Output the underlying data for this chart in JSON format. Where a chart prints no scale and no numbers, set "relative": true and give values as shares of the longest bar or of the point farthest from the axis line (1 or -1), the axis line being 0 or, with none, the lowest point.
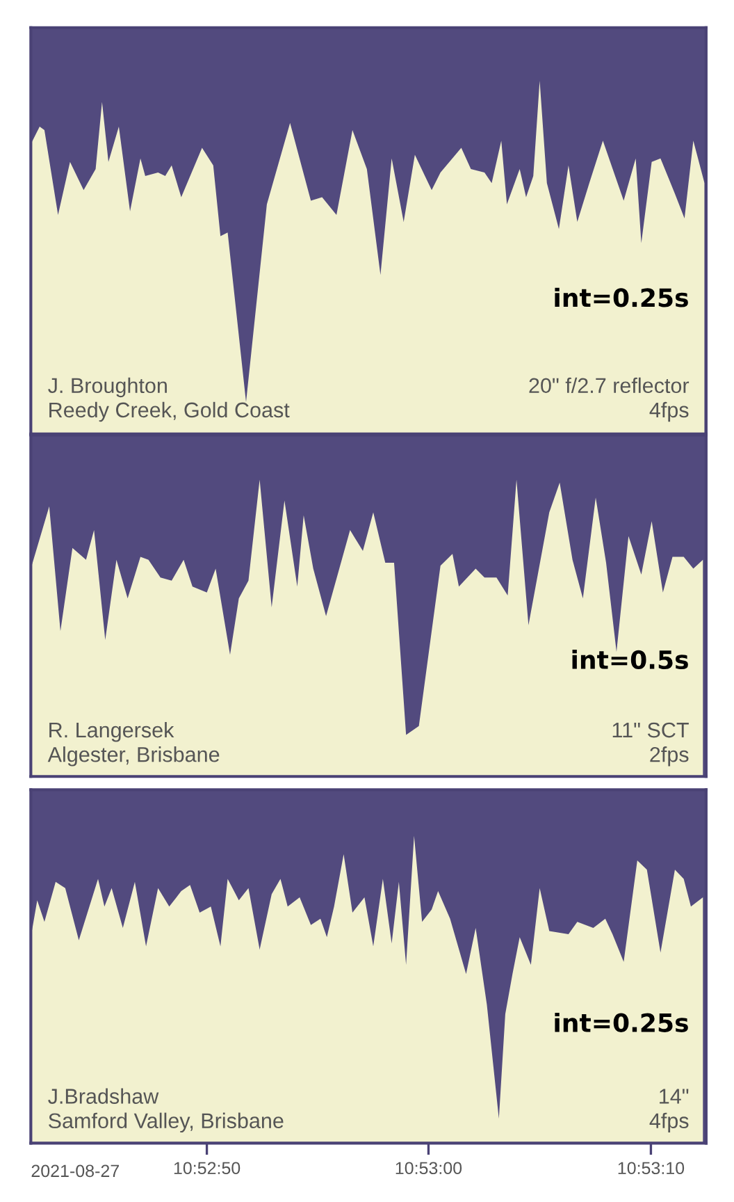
{
  "chart_data": [
    {
      "type": "area",
      "relative": true,
      "color": "#f2f1cf",
      "tick_labels": false,
      "xlim": [
        10.87836,
        10.8868
      ],
      "x": [
        10.87836,
        10.87847,
        10.87853,
        10.8787,
        10.87885,
        10.87902,
        10.87917,
        10.87925,
        10.87933,
        10.87946,
        10.8796,
        10.87973,
        10.87979,
        10.87995,
        10.88004,
        10.88012,
        10.88024,
        10.8805,
        10.88064,
        10.88073,
        10.88082,
        10.88105,
        10.88131,
        10.8816,
        10.88186,
        10.882,
        10.88218,
        10.88238,
        10.88256,
        10.88273,
        10.88287,
        10.88302,
        10.88316,
        10.88337,
        10.88348,
        10.88374,
        10.88386,
        10.88403,
        10.88412,
        10.88424,
        10.88431,
        10.88447,
        10.88455,
        10.88464,
        10.88472,
        10.88481,
        10.88496,
        10.88508,
        10.88519,
        10.88534,
        10.88551,
        10.88577,
        10.88592,
        10.88599,
        10.88612,
        10.88623,
        10.88641,
        10.88653,
        10.88664,
        10.88678
      ],
      "values": [
        0.82,
        0.87,
        0.86,
        0.62,
        0.77,
        0.69,
        0.75,
        0.94,
        0.77,
        0.87,
        0.63,
        0.78,
        0.73,
        0.74,
        0.73,
        0.76,
        0.67,
        0.81,
        0.76,
        0.56,
        0.57,
        0.09,
        0.65,
        0.88,
        0.66,
        0.67,
        0.62,
        0.86,
        0.75,
        0.45,
        0.78,
        0.6,
        0.79,
        0.69,
        0.74,
        0.81,
        0.75,
        0.74,
        0.71,
        0.83,
        0.65,
        0.75,
        0.67,
        0.73,
        1.0,
        0.71,
        0.58,
        0.76,
        0.6,
        0.71,
        0.83,
        0.66,
        0.78,
        0.54,
        0.77,
        0.78,
        0.68,
        0.61,
        0.83,
        0.71
      ],
      "annotations": [
        "J. Broughton\nReedy Creek, Gold Coast",
        "20\" f/2.7 reflector\n4fps",
        "int=0.25s"
      ]
    },
    {
      "type": "area",
      "relative": true,
      "color": "#f2f1cf",
      "tick_labels": false,
      "xlim": [
        10.87836,
        10.8868
      ],
      "x": [
        10.87836,
        10.87859,
        10.87873,
        10.87888,
        10.87905,
        10.87915,
        10.87929,
        10.87943,
        10.87957,
        10.87973,
        10.87983,
        10.87998,
        10.88012,
        10.88027,
        10.88038,
        10.88056,
        10.88067,
        10.88085,
        10.88096,
        10.88108,
        10.88122,
        10.88137,
        10.88153,
        10.88169,
        10.88177,
        10.88189,
        10.88205,
        10.88235,
        10.88251,
        10.88264,
        10.88279,
        10.8829,
        10.88305,
        10.88321,
        10.88348,
        10.88363,
        10.88371,
        10.88392,
        10.88403,
        10.88418,
        10.88432,
        10.88443,
        10.88458,
        10.88484,
        10.88497,
        10.88513,
        10.88526,
        10.88542,
        10.88555,
        10.88568,
        10.88583,
        10.88599,
        10.88612,
        10.88626,
        10.88638,
        10.88652,
        10.88664,
        10.88676
      ],
      "values": [
        0.7,
        0.91,
        0.49,
        0.77,
        0.73,
        0.83,
        0.46,
        0.73,
        0.6,
        0.74,
        0.73,
        0.67,
        0.66,
        0.73,
        0.64,
        0.62,
        0.7,
        0.41,
        0.6,
        0.66,
        1.0,
        0.57,
        0.93,
        0.64,
        0.88,
        0.7,
        0.54,
        0.83,
        0.76,
        0.89,
        0.72,
        0.72,
        0.14,
        0.17,
        0.71,
        0.75,
        0.64,
        0.7,
        0.67,
        0.67,
        0.61,
        1.0,
        0.51,
        0.89,
        0.99,
        0.73,
        0.6,
        0.94,
        0.72,
        0.42,
        0.81,
        0.68,
        0.86,
        0.62,
        0.74,
        0.74,
        0.7,
        0.73
      ],
      "annotations": [
        "R. Langersek\nAlgester, Brisbane",
        "11\" SCT\n2fps",
        "int=0.5s"
      ]
    },
    {
      "type": "area",
      "relative": true,
      "color": "#f2f1cf",
      "tick_labels": "x",
      "xlim": [
        10.87836,
        10.8868
      ],
      "xticks": [
        {
          "value": 10.88056,
          "label": "10:52:50"
        },
        {
          "value": 10.88333,
          "label": "10:53:00"
        },
        {
          "value": 10.88611,
          "label": "10:53:10"
        }
      ],
      "x": [
        10.87836,
        10.87844,
        10.87853,
        10.87867,
        10.87879,
        10.87896,
        10.8792,
        10.87928,
        10.87937,
        10.87951,
        10.87966,
        10.8798,
        10.87995,
        10.88009,
        10.88024,
        10.88035,
        10.88047,
        10.88061,
        10.88073,
        10.88082,
        10.88096,
        10.88108,
        10.88122,
        10.88137,
        10.88148,
        10.88157,
        10.88172,
        10.88186,
        10.88198,
        10.88206,
        10.88215,
        10.88227,
        10.88238,
        10.88253,
        10.88264,
        10.88276,
        10.88287,
        10.88296,
        10.88305,
        10.88315,
        10.88325,
        10.88337,
        10.88345,
        10.8836,
        10.8838,
        10.88392,
        10.88406,
        10.88421,
        10.88429,
        10.88438,
        10.88447,
        10.88461,
        10.88472,
        10.88484,
        10.88508,
        10.88519,
        10.88539,
        10.88554,
        10.88563,
        10.88577,
        10.88594,
        10.88606,
        10.88623,
        10.88641,
        10.88652,
        10.88661,
        10.88676
      ],
      "values": [
        0.67,
        0.79,
        0.72,
        0.85,
        0.83,
        0.66,
        0.86,
        0.77,
        0.83,
        0.7,
        0.85,
        0.64,
        0.83,
        0.77,
        0.82,
        0.84,
        0.75,
        0.77,
        0.64,
        0.86,
        0.79,
        0.83,
        0.63,
        0.81,
        0.86,
        0.77,
        0.8,
        0.71,
        0.73,
        0.67,
        0.77,
        0.94,
        0.75,
        0.8,
        0.64,
        0.86,
        0.65,
        0.85,
        0.58,
        1.0,
        0.72,
        0.76,
        0.82,
        0.73,
        0.55,
        0.7,
        0.45,
        0.08,
        0.42,
        0.55,
        0.67,
        0.58,
        0.83,
        0.69,
        0.68,
        0.72,
        0.7,
        0.73,
        0.68,
        0.59,
        0.92,
        0.89,
        0.62,
        0.89,
        0.86,
        0.77,
        0.8
      ],
      "annotations": [
        "J.Bradshaw\nSamford Valley, Brisbane",
        "14\"\n4fps",
        "int=0.25s",
        "2021-08-27"
      ]
    }
  ]
}
